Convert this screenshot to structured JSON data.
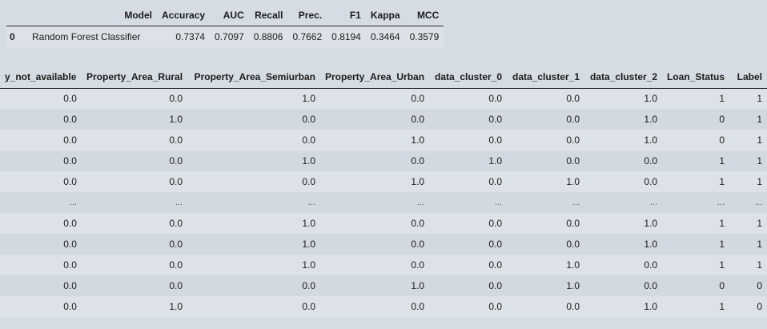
{
  "metrics": {
    "headers": [
      "",
      "Model",
      "Accuracy",
      "AUC",
      "Recall",
      "Prec.",
      "F1",
      "Kappa",
      "MCC"
    ],
    "row": {
      "index": "0",
      "model": "Random Forest Classifier",
      "accuracy": "0.7374",
      "auc": "0.7097",
      "recall": "0.8806",
      "prec": "0.7662",
      "f1": "0.8194",
      "kappa": "0.3464",
      "mcc": "0.3579"
    }
  },
  "data_table": {
    "headers": [
      "y_not_available",
      "Property_Area_Rural",
      "Property_Area_Semiurban",
      "Property_Area_Urban",
      "data_cluster_0",
      "data_cluster_1",
      "data_cluster_2",
      "Loan_Status",
      "Label"
    ],
    "rows": [
      [
        "0.0",
        "0.0",
        "1.0",
        "0.0",
        "0.0",
        "0.0",
        "1.0",
        "1",
        "1"
      ],
      [
        "0.0",
        "1.0",
        "0.0",
        "0.0",
        "0.0",
        "0.0",
        "1.0",
        "0",
        "1"
      ],
      [
        "0.0",
        "0.0",
        "0.0",
        "1.0",
        "0.0",
        "0.0",
        "1.0",
        "0",
        "1"
      ],
      [
        "0.0",
        "0.0",
        "1.0",
        "0.0",
        "1.0",
        "0.0",
        "0.0",
        "1",
        "1"
      ],
      [
        "0.0",
        "0.0",
        "0.0",
        "1.0",
        "0.0",
        "1.0",
        "0.0",
        "1",
        "1"
      ],
      [
        "...",
        "...",
        "...",
        "...",
        "...",
        "...",
        "...",
        "...",
        "..."
      ],
      [
        "0.0",
        "0.0",
        "1.0",
        "0.0",
        "0.0",
        "0.0",
        "1.0",
        "1",
        "1"
      ],
      [
        "0.0",
        "0.0",
        "1.0",
        "0.0",
        "0.0",
        "0.0",
        "1.0",
        "1",
        "1"
      ],
      [
        "0.0",
        "0.0",
        "1.0",
        "0.0",
        "0.0",
        "1.0",
        "0.0",
        "1",
        "1"
      ],
      [
        "0.0",
        "0.0",
        "0.0",
        "1.0",
        "0.0",
        "1.0",
        "0.0",
        "0",
        "0"
      ],
      [
        "0.0",
        "1.0",
        "0.0",
        "0.0",
        "0.0",
        "0.0",
        "1.0",
        "1",
        "0"
      ]
    ]
  }
}
